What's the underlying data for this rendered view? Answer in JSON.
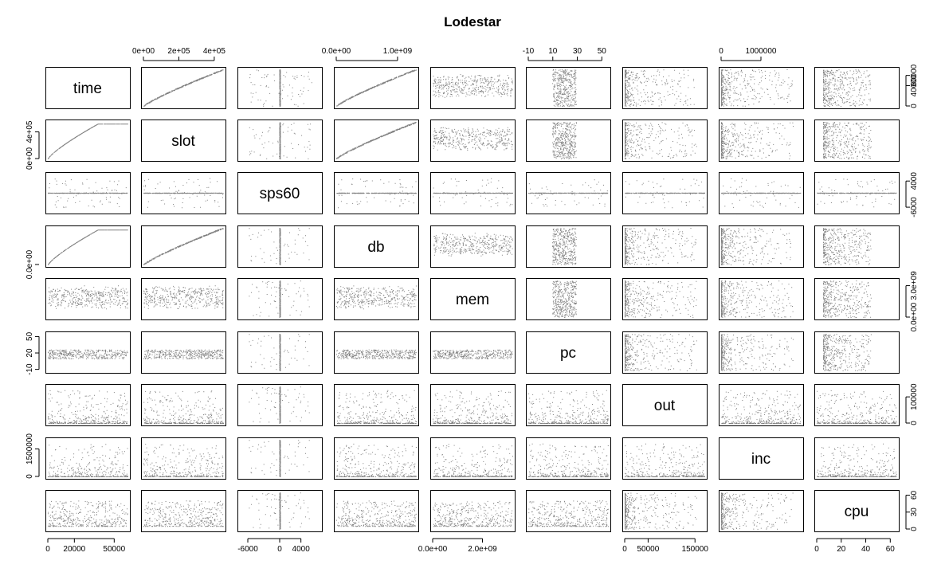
{
  "chart_data": {
    "type": "scatter-matrix",
    "title": "Lodestar",
    "variables": [
      "time",
      "slot",
      "sps60",
      "db",
      "mem",
      "pc",
      "out",
      "inc",
      "cpu"
    ],
    "point_color": "#808080",
    "grid": false,
    "axis_ticks": {
      "top": [
        {
          "variable": "slot",
          "range": [
            0,
            450000
          ],
          "ticks": [
            0,
            200000,
            400000
          ],
          "labels": [
            "0e+00",
            "2e+05",
            "4e+05"
          ]
        },
        {
          "variable": "db",
          "range": [
            0,
            1300000000
          ],
          "ticks": [
            0,
            1000000000
          ],
          "labels": [
            "0.0e+00",
            "1.0e+09"
          ]
        },
        {
          "variable": "pc",
          "range": [
            -10,
            55
          ],
          "ticks": [
            -10,
            10,
            30,
            50
          ],
          "labels": [
            "-10",
            "10",
            "30",
            "50"
          ]
        },
        {
          "variable": "inc",
          "range": [
            0,
            2000000
          ],
          "ticks": [
            0,
            1000000
          ],
          "labels": [
            "0",
            "1000000"
          ]
        }
      ],
      "bottom": [
        {
          "variable": "time",
          "range": [
            0,
            60000
          ],
          "ticks": [
            0,
            20000,
            50000
          ],
          "labels": [
            "0",
            "20000",
            "50000"
          ]
        },
        {
          "variable": "sps60",
          "range": [
            -7500,
            7500
          ],
          "ticks": [
            -6000,
            0,
            4000
          ],
          "labels": [
            "-6000",
            "0",
            "4000"
          ]
        },
        {
          "variable": "mem",
          "range": [
            0,
            3200000000
          ],
          "ticks": [
            0,
            2000000000
          ],
          "labels": [
            "0.0e+00",
            "2.0e+09"
          ]
        },
        {
          "variable": "out",
          "range": [
            0,
            170000
          ],
          "ticks": [
            0,
            50000,
            150000
          ],
          "labels": [
            "0",
            "50000",
            "150000"
          ]
        },
        {
          "variable": "cpu",
          "range": [
            0,
            65
          ],
          "ticks": [
            0,
            20,
            40,
            60
          ],
          "labels": [
            "0",
            "20",
            "40",
            "60"
          ]
        }
      ],
      "left": [
        {
          "variable": "slot",
          "range": [
            0,
            550000
          ],
          "ticks": [
            0,
            400000
          ],
          "labels": [
            "0e+00",
            "4e+05"
          ]
        },
        {
          "variable": "db",
          "range": [
            0,
            1300000000
          ],
          "ticks": [
            0
          ],
          "labels": [
            "0.0e+00"
          ]
        },
        {
          "variable": "pc",
          "range": [
            -12,
            55
          ],
          "ticks": [
            -10,
            20,
            50
          ],
          "labels": [
            "-10",
            "20",
            "50"
          ]
        },
        {
          "variable": "inc",
          "range": [
            0,
            2000000
          ],
          "ticks": [
            0,
            1500000
          ],
          "labels": [
            "0",
            "1500000"
          ]
        }
      ],
      "right": [
        {
          "variable": "time",
          "range": [
            0,
            72000
          ],
          "ticks": [
            0,
            40000,
            60000
          ],
          "labels": [
            "0",
            "40000",
            "60000"
          ]
        },
        {
          "variable": "sps60",
          "range": [
            -7500,
            6500
          ],
          "ticks": [
            -6000,
            4000
          ],
          "labels": [
            "-6000",
            "4000"
          ]
        },
        {
          "variable": "mem",
          "range": [
            0,
            3500000000
          ],
          "ticks": [
            0,
            3000000000
          ],
          "labels": [
            "0.0e+00",
            "3.0e+09"
          ]
        },
        {
          "variable": "out",
          "range": [
            0,
            140000
          ],
          "ticks": [
            0,
            100000
          ],
          "labels": [
            "0",
            "100000"
          ]
        },
        {
          "variable": "cpu",
          "range": [
            0,
            65
          ],
          "ticks": [
            0,
            30,
            60
          ],
          "labels": [
            "0",
            "30",
            "60"
          ]
        }
      ]
    }
  }
}
